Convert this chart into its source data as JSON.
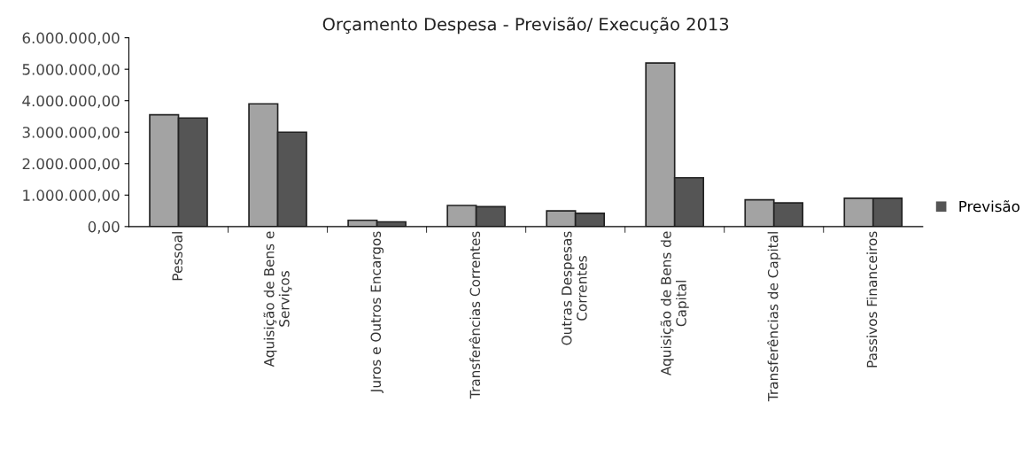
{
  "chart_data": {
    "type": "bar",
    "title": "Orçamento Despesa - Previsão/ Execução 2013",
    "categories": [
      "Pessoal",
      "Aquisição de Bens e\nServiços",
      "Juros e Outros Encargos",
      "Transferências Correntes",
      "Outras Despesas\nCorrentes",
      "Aquisição de Bens de\nCapital",
      "Transferências de Capital",
      "Passivos Financeiros"
    ],
    "series": [
      {
        "color": "#a3a3a3",
        "values": [
          3550000,
          3900000,
          200000,
          670000,
          500000,
          5200000,
          850000,
          900000
        ]
      },
      {
        "name": "Previsão",
        "color": "#555555",
        "values": [
          3450000,
          3000000,
          150000,
          630000,
          420000,
          1550000,
          750000,
          900000
        ]
      }
    ],
    "ylim": [
      0,
      6000000
    ],
    "yticks": [
      {
        "value": 0,
        "label": "0,00"
      },
      {
        "value": 1000000,
        "label": "1.000.000,00"
      },
      {
        "value": 2000000,
        "label": "2.000.000,00"
      },
      {
        "value": 3000000,
        "label": "3.000.000,00"
      },
      {
        "value": 4000000,
        "label": "4.000.000,00"
      },
      {
        "value": 5000000,
        "label": "5.000.000,00"
      },
      {
        "value": 6000000,
        "label": "6.000.000,00"
      }
    ],
    "grid": false,
    "legend": "right"
  }
}
